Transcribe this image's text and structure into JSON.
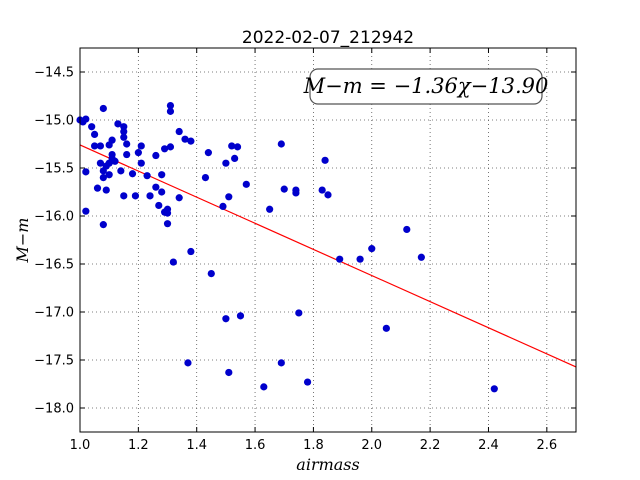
{
  "chart_data": {
    "type": "scatter",
    "title": "2022-02-07_212942",
    "xlabel": "airmass",
    "ylabel": "M−m",
    "xlim": [
      1.0,
      2.7
    ],
    "ylim": [
      -18.25,
      -14.25
    ],
    "x_ticks": [
      1.0,
      1.2,
      1.4,
      1.6,
      1.8,
      2.0,
      2.2,
      2.4,
      2.6
    ],
    "x_tick_labels": [
      "1.0",
      "1.2",
      "1.4",
      "1.6",
      "1.8",
      "2.0",
      "2.2",
      "2.4",
      "2.6"
    ],
    "y_ticks": [
      -14.5,
      -15.0,
      -15.5,
      -16.0,
      -16.5,
      -17.0,
      -17.5,
      -18.0
    ],
    "y_tick_labels": [
      "−14.5",
      "−15.0",
      "−15.5",
      "−16.0",
      "−16.5",
      "−17.0",
      "−17.5",
      "−18.0"
    ],
    "grid": true,
    "annotation": "M−m = −1.36χ−13.90",
    "fit": {
      "slope": -1.36,
      "intercept": -13.9,
      "color": "#ff0000"
    },
    "point_color": "#0000cc",
    "points": [
      [
        1.0,
        -15.0
      ],
      [
        1.01,
        -15.02
      ],
      [
        1.02,
        -14.99
      ],
      [
        1.02,
        -15.54
      ],
      [
        1.02,
        -15.95
      ],
      [
        1.04,
        -15.07
      ],
      [
        1.05,
        -15.15
      ],
      [
        1.05,
        -15.27
      ],
      [
        1.06,
        -15.71
      ],
      [
        1.07,
        -15.27
      ],
      [
        1.07,
        -15.45
      ],
      [
        1.08,
        -15.6
      ],
      [
        1.08,
        -14.88
      ],
      [
        1.08,
        -15.53
      ],
      [
        1.09,
        -15.48
      ],
      [
        1.09,
        -15.73
      ],
      [
        1.08,
        -16.09
      ],
      [
        1.1,
        -15.57
      ],
      [
        1.1,
        -15.45
      ],
      [
        1.1,
        -15.26
      ],
      [
        1.11,
        -15.21
      ],
      [
        1.11,
        -15.4
      ],
      [
        1.12,
        -15.43
      ],
      [
        1.11,
        -15.36
      ],
      [
        1.13,
        -15.04
      ],
      [
        1.14,
        -15.53
      ],
      [
        1.15,
        -15.07
      ],
      [
        1.15,
        -15.12
      ],
      [
        1.15,
        -15.18
      ],
      [
        1.15,
        -15.79
      ],
      [
        1.16,
        -15.25
      ],
      [
        1.16,
        -15.36
      ],
      [
        1.18,
        -15.56
      ],
      [
        1.19,
        -15.79
      ],
      [
        1.2,
        -15.34
      ],
      [
        1.21,
        -15.27
      ],
      [
        1.21,
        -15.45
      ],
      [
        1.23,
        -15.58
      ],
      [
        1.24,
        -15.79
      ],
      [
        1.26,
        -15.7
      ],
      [
        1.26,
        -15.37
      ],
      [
        1.27,
        -15.89
      ],
      [
        1.28,
        -15.57
      ],
      [
        1.28,
        -15.75
      ],
      [
        1.29,
        -15.3
      ],
      [
        1.29,
        -15.96
      ],
      [
        1.3,
        -15.93
      ],
      [
        1.3,
        -15.97
      ],
      [
        1.3,
        -16.08
      ],
      [
        1.31,
        -15.28
      ],
      [
        1.31,
        -14.85
      ],
      [
        1.31,
        -14.91
      ],
      [
        1.32,
        -16.48
      ],
      [
        1.34,
        -15.81
      ],
      [
        1.34,
        -15.12
      ],
      [
        1.36,
        -15.2
      ],
      [
        1.37,
        -17.53
      ],
      [
        1.38,
        -15.22
      ],
      [
        1.38,
        -16.37
      ],
      [
        1.43,
        -15.6
      ],
      [
        1.44,
        -15.34
      ],
      [
        1.45,
        -16.6
      ],
      [
        1.49,
        -15.9
      ],
      [
        1.5,
        -15.45
      ],
      [
        1.5,
        -17.07
      ],
      [
        1.51,
        -15.8
      ],
      [
        1.51,
        -17.63
      ],
      [
        1.52,
        -15.27
      ],
      [
        1.53,
        -15.4
      ],
      [
        1.54,
        -15.28
      ],
      [
        1.55,
        -17.04
      ],
      [
        1.57,
        -15.67
      ],
      [
        1.63,
        -17.78
      ],
      [
        1.65,
        -15.93
      ],
      [
        1.69,
        -15.25
      ],
      [
        1.69,
        -17.53
      ],
      [
        1.7,
        -15.72
      ],
      [
        1.74,
        -15.76
      ],
      [
        1.74,
        -15.73
      ],
      [
        1.75,
        -17.01
      ],
      [
        1.78,
        -17.73
      ],
      [
        1.83,
        -15.73
      ],
      [
        1.84,
        -15.42
      ],
      [
        1.85,
        -15.78
      ],
      [
        1.89,
        -16.45
      ],
      [
        1.96,
        -16.45
      ],
      [
        2.0,
        -16.34
      ],
      [
        2.05,
        -17.17
      ],
      [
        2.12,
        -16.14
      ],
      [
        2.17,
        -16.43
      ],
      [
        2.42,
        -17.8
      ]
    ]
  }
}
